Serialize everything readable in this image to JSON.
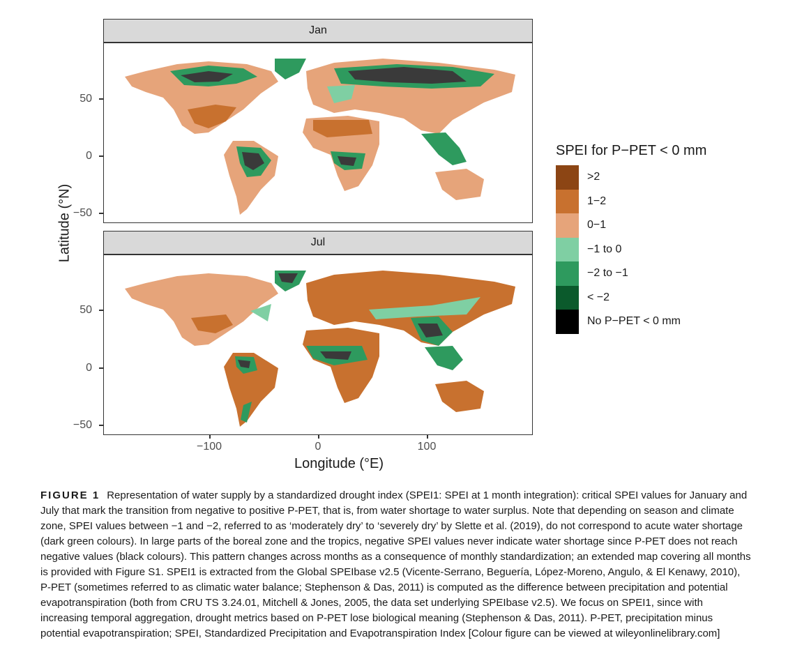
{
  "figure": {
    "panels": [
      {
        "label": "Jan"
      },
      {
        "label": "Jul"
      }
    ],
    "y_axis": {
      "label": "Latitude (°N)",
      "ticks": [
        "50",
        "0",
        "−50"
      ]
    },
    "x_axis": {
      "label": "Longitude (°E)",
      "ticks": [
        "−100",
        "0",
        "100"
      ]
    },
    "legend": {
      "title": "SPEI for P−PET < 0 mm",
      "items": [
        {
          "label": ">2",
          "color": "#8c4514"
        },
        {
          "label": "1−2",
          "color": "#c8712f"
        },
        {
          "label": "0−1",
          "color": "#e6a47a"
        },
        {
          "label": "−1 to 0",
          "color": "#7fcfa3"
        },
        {
          "label": "−2 to −1",
          "color": "#2e9a5e"
        },
        {
          "label": "< −2",
          "color": "#0b5a2c"
        },
        {
          "label": "No P−PET < 0 mm",
          "color": "#000000"
        }
      ]
    }
  },
  "chart_data": [
    {
      "type": "heatmap",
      "title": "Jan",
      "xlabel": "Longitude (°E)",
      "ylabel": "Latitude (°N)",
      "xlim": [
        -180,
        180
      ],
      "ylim": [
        -56,
        84
      ],
      "xticks": [
        -100,
        0,
        100
      ],
      "yticks": [
        50,
        0,
        -50
      ],
      "legend_placement": "right",
      "grid": false
    },
    {
      "type": "heatmap",
      "title": "Jul",
      "xlabel": "Longitude (°E)",
      "ylabel": "Latitude (°N)",
      "xlim": [
        -180,
        180
      ],
      "ylim": [
        -56,
        84
      ],
      "xticks": [
        -100,
        0,
        100
      ],
      "yticks": [
        50,
        0,
        -50
      ],
      "legend_placement": "right",
      "grid": false
    }
  ],
  "caption": {
    "label": "FIGURE 1",
    "text": "Representation of water supply by a standardized drought index (SPEI1: SPEI at 1 month integration): critical SPEI values for January and July that mark the transition from negative to positive P-PET, that is, from water shortage to water surplus. Note that depending on season and climate zone, SPEI values between −1 and −2, referred to as ‘moderately dry’ to ‘severely dry’ by Slette et al. (2019), do not correspond to acute water shortage (dark green colours). In large parts of the boreal zone and the tropics, negative SPEI values never indicate water shortage since P-PET does not reach negative values (black colours). This pattern changes across months as a consequence of monthly standardization; an extended map covering all months is provided with Figure S1. SPEI1 is extracted from the Global SPEIbase v2.5 (Vicente-Serrano, Beguería, López-Moreno, Angulo, & El Kenawy, 2010), P-PET (sometimes referred to as climatic water balance; Stephenson & Das, 2011) is computed as the difference between precipitation and potential evapotranspiration (both from CRU TS 3.24.01, Mitchell & Jones, 2005, the data set underlying SPEIbase v2.5). We focus on SPEI1, since with increasing temporal aggregation, drought metrics based on P-PET lose biological meaning (Stephenson & Das, 2011). P-PET, precipitation minus potential evapotranspiration; SPEI, Standardized Precipitation and Evapotranspiration Index [Colour figure can be viewed at wileyonlinelibrary.com]"
  }
}
